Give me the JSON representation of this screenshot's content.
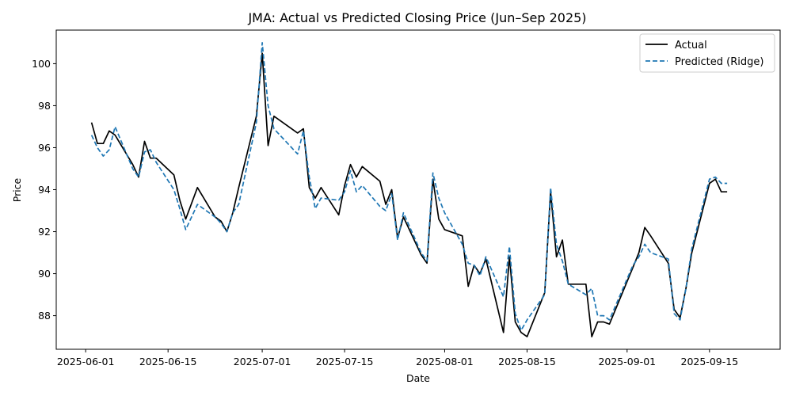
{
  "chart_data": {
    "type": "line",
    "title": "JMA: Actual vs Predicted Closing Price (Jun–Sep 2025)",
    "xlabel": "Date",
    "ylabel": "Price",
    "xlim": [
      "2025-05-27",
      "2025-09-27"
    ],
    "ylim": [
      86.4,
      101.6
    ],
    "x_ticks": [
      "2025-06-01",
      "2025-06-15",
      "2025-07-01",
      "2025-07-15",
      "2025-08-01",
      "2025-08-15",
      "2025-09-01",
      "2025-09-15"
    ],
    "y_ticks": [
      88,
      90,
      92,
      94,
      96,
      98,
      100
    ],
    "grid": false,
    "legend": "top-right",
    "x": [
      "2025-06-02",
      "2025-06-03",
      "2025-06-04",
      "2025-06-05",
      "2025-06-06",
      "2025-06-09",
      "2025-06-10",
      "2025-06-11",
      "2025-06-12",
      "2025-06-13",
      "2025-06-16",
      "2025-06-17",
      "2025-06-18",
      "2025-06-20",
      "2025-06-23",
      "2025-06-24",
      "2025-06-25",
      "2025-06-26",
      "2025-06-27",
      "2025-06-30",
      "2025-07-01",
      "2025-07-02",
      "2025-07-03",
      "2025-07-07",
      "2025-07-08",
      "2025-07-09",
      "2025-07-10",
      "2025-07-11",
      "2025-07-14",
      "2025-07-15",
      "2025-07-16",
      "2025-07-17",
      "2025-07-18",
      "2025-07-21",
      "2025-07-22",
      "2025-07-23",
      "2025-07-24",
      "2025-07-25",
      "2025-07-28",
      "2025-07-29",
      "2025-07-30",
      "2025-07-31",
      "2025-08-01",
      "2025-08-04",
      "2025-08-05",
      "2025-08-06",
      "2025-08-07",
      "2025-08-08",
      "2025-08-11",
      "2025-08-12",
      "2025-08-13",
      "2025-08-14",
      "2025-08-15",
      "2025-08-18",
      "2025-08-19",
      "2025-08-20",
      "2025-08-21",
      "2025-08-22",
      "2025-08-25",
      "2025-08-26",
      "2025-08-27",
      "2025-08-28",
      "2025-08-29",
      "2025-09-02",
      "2025-09-03",
      "2025-09-04",
      "2025-09-05",
      "2025-09-08",
      "2025-09-09",
      "2025-09-10",
      "2025-09-11",
      "2025-09-12",
      "2025-09-15",
      "2025-09-16",
      "2025-09-17",
      "2025-09-18"
    ],
    "series": [
      {
        "name": "Actual",
        "color": "#000000",
        "style": "solid",
        "values": [
          97.2,
          96.2,
          96.2,
          96.8,
          96.6,
          95.2,
          94.6,
          96.3,
          95.5,
          95.5,
          94.7,
          93.5,
          92.6,
          94.1,
          92.7,
          92.5,
          92.0,
          92.9,
          94.1,
          97.5,
          100.5,
          96.1,
          97.5,
          96.7,
          96.9,
          94.1,
          93.6,
          94.1,
          92.8,
          94.2,
          95.2,
          94.6,
          95.1,
          94.4,
          93.3,
          94.0,
          91.7,
          92.7,
          90.9,
          90.5,
          94.5,
          92.6,
          92.1,
          91.8,
          89.4,
          90.4,
          90.0,
          90.7,
          87.2,
          90.8,
          87.7,
          87.2,
          87.0,
          89.1,
          93.9,
          90.8,
          91.6,
          89.5,
          89.5,
          87.0,
          87.7,
          87.7,
          87.6,
          90.3,
          91.0,
          92.2,
          91.8,
          90.5,
          88.3,
          87.9,
          89.3,
          91.0,
          94.3,
          94.5,
          93.9,
          93.9
        ]
      },
      {
        "name": "Predicted (Ridge)",
        "color": "#1f77b4",
        "style": "dashed",
        "values": [
          96.6,
          96.0,
          95.6,
          95.9,
          97.0,
          95.0,
          94.6,
          95.8,
          95.9,
          95.3,
          94.0,
          93.1,
          92.1,
          93.3,
          92.7,
          92.4,
          92.0,
          92.9,
          93.3,
          97.2,
          101.0,
          98.0,
          96.9,
          95.7,
          96.8,
          94.6,
          93.1,
          93.6,
          93.5,
          93.9,
          94.9,
          93.9,
          94.2,
          93.2,
          93.0,
          93.8,
          91.6,
          92.9,
          91.0,
          90.6,
          94.8,
          93.6,
          92.9,
          91.4,
          90.5,
          90.4,
          89.9,
          90.8,
          88.9,
          91.3,
          88.1,
          87.3,
          87.8,
          89.0,
          94.1,
          91.4,
          90.6,
          89.5,
          89.0,
          89.3,
          88.0,
          88.0,
          87.8,
          90.4,
          90.8,
          91.4,
          91.0,
          90.7,
          88.1,
          87.8,
          89.3,
          91.2,
          94.5,
          94.6,
          94.3,
          94.3
        ]
      }
    ]
  }
}
